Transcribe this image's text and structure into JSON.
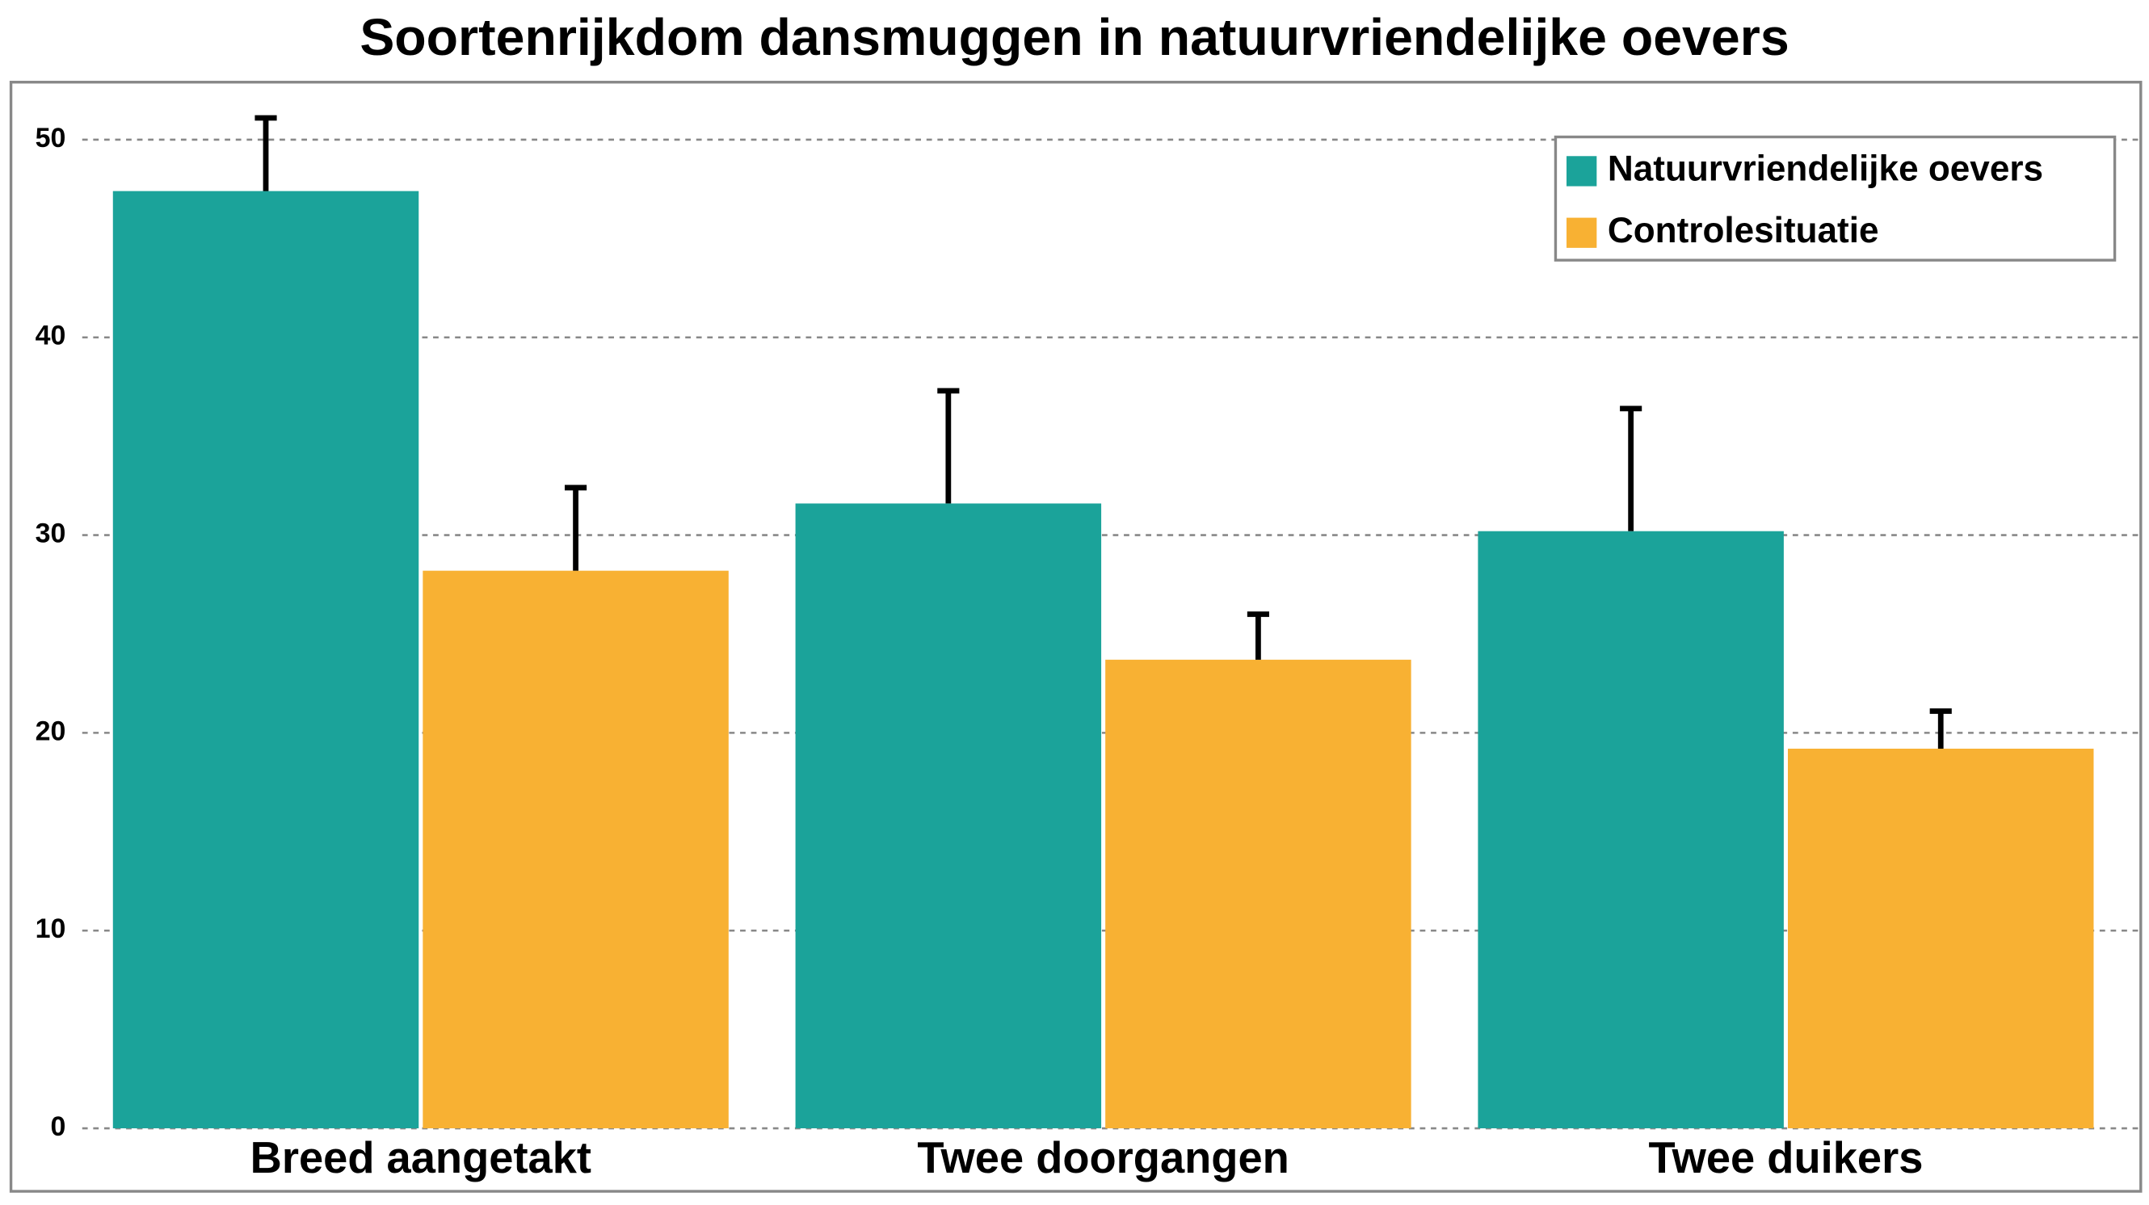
{
  "chart_data": {
    "type": "bar",
    "title": "Soortenrijkdom dansmuggen in natuurvriendelijke oevers",
    "categories": [
      "Breed aangetakt",
      "Twee doorgangen",
      "Twee duikers"
    ],
    "series": [
      {
        "name": "Natuurvriendelijke oevers",
        "color": "#1ba39a",
        "values": [
          47.4,
          31.6,
          30.2
        ],
        "errors": [
          3.7,
          5.7,
          6.2
        ]
      },
      {
        "name": "Controlesituatie",
        "color": "#f8b133",
        "values": [
          28.2,
          23.7,
          19.2
        ],
        "errors": [
          4.2,
          2.3,
          1.9
        ]
      }
    ],
    "ylim": [
      0,
      50
    ],
    "yticks": [
      0,
      10,
      20,
      30,
      40,
      50
    ],
    "grid": true,
    "legend": "top-right"
  }
}
